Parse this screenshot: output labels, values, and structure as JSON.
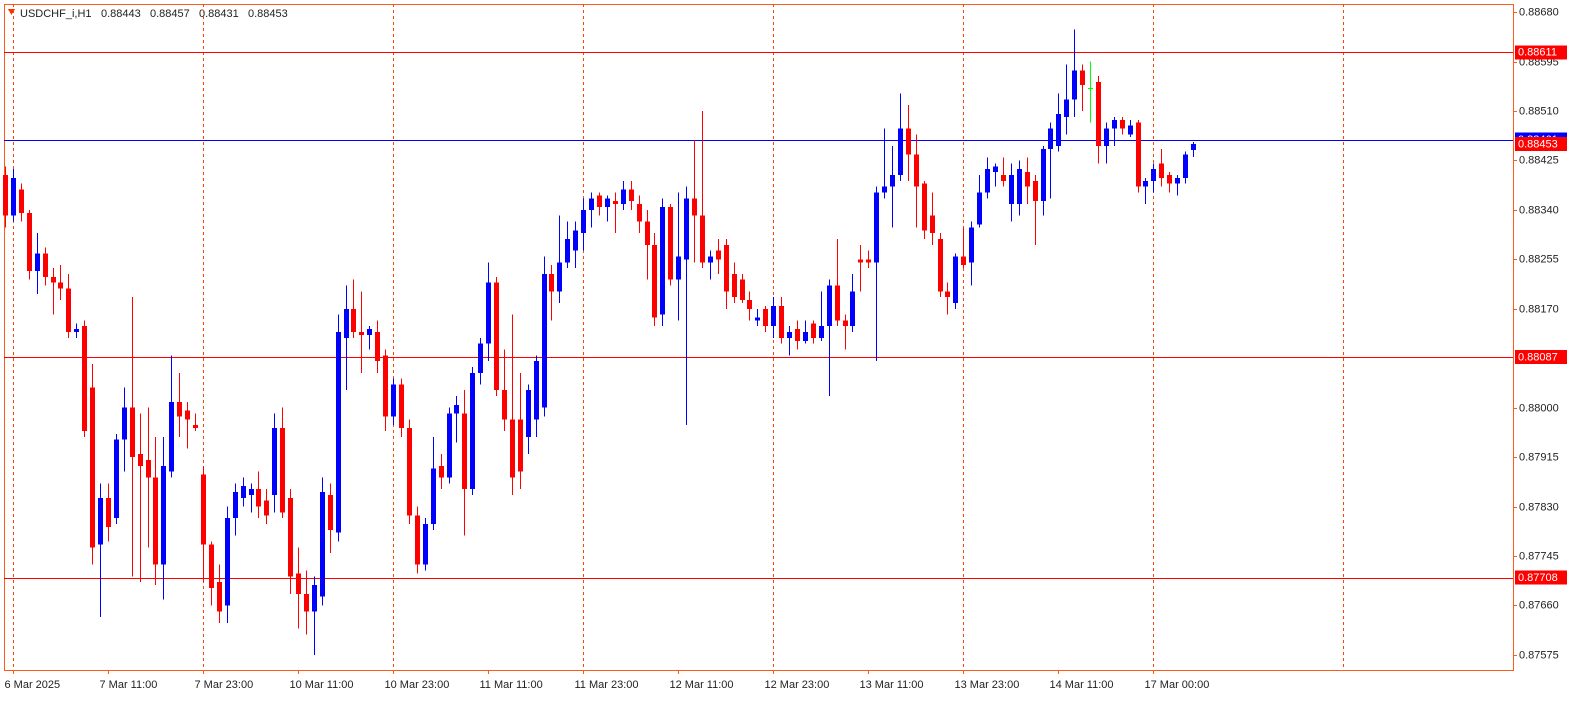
{
  "chart_data": {
    "type": "candlestick",
    "title": "USDCHF_i,H1",
    "categories": [
      null,
      "6 Mar 2025",
      null,
      null,
      null,
      null,
      null,
      null,
      null,
      null,
      null,
      null,
      null,
      "7 Mar 11:00",
      null,
      null,
      null,
      null,
      null,
      null,
      null,
      null,
      null,
      null,
      null,
      "7 Mar 23:00",
      null,
      null,
      null,
      null,
      null,
      null,
      null,
      null,
      null,
      null,
      null,
      "10 Mar 11:00",
      null,
      null,
      null,
      null,
      null,
      null,
      null,
      null,
      null,
      null,
      null,
      "10 Mar 23:00",
      null,
      null,
      null,
      null,
      null,
      null,
      null,
      null,
      null,
      null,
      null,
      "11 Mar 11:00",
      null,
      null,
      null,
      null,
      null,
      null,
      null,
      null,
      null,
      null,
      null,
      "11 Mar 23:00",
      null,
      null,
      null,
      null,
      null,
      null,
      null,
      null,
      null,
      null,
      null,
      "12 Mar 11:00",
      null,
      null,
      null,
      null,
      null,
      null,
      null,
      null,
      null,
      null,
      null,
      "12 Mar 23:00",
      null,
      null,
      null,
      null,
      null,
      null,
      null,
      null,
      null,
      null,
      null,
      "13 Mar 11:00",
      null,
      null,
      null,
      null,
      null,
      null,
      null,
      null,
      null,
      null,
      null,
      "13 Mar 23:00",
      null,
      null,
      null,
      null,
      null,
      null,
      null,
      null,
      null,
      null,
      null,
      "14 Mar 11:00",
      null,
      null,
      null,
      null,
      null,
      null,
      null,
      null,
      null,
      null,
      null,
      "17 Mar 00:00",
      null,
      null,
      null,
      null,
      null
    ],
    "open": [
      0.884,
      0.8833,
      0.88375,
      0.88335,
      0.88235,
      0.88265,
      0.88225,
      0.88215,
      0.88205,
      0.8813,
      0.8814,
      0.88035,
      0.87765,
      0.87845,
      0.8781,
      0.87945,
      0.88,
      0.8792,
      0.8791,
      0.8788,
      0.8773,
      0.8789,
      0.8801,
      0.87995,
      0.8797,
      0.87885,
      0.87765,
      0.877,
      0.8766,
      0.8781,
      0.87845,
      0.8785,
      0.8786,
      0.8784,
      0.8785,
      0.87965,
      0.87845,
      0.87715,
      0.8768,
      0.8765,
      0.87675,
      0.8785,
      0.87785,
      0.8812,
      0.8817,
      0.8813,
      0.88125,
      0.8813,
      0.8809,
      0.87985,
      0.8804,
      0.87965,
      0.87815,
      0.8773,
      0.878,
      0.879,
      0.8788,
      0.8799,
      0.8799,
      0.8786,
      0.8806,
      0.8811,
      0.88215,
      0.8803,
      0.8798,
      0.8798,
      0.8795,
      0.8798,
      0.88,
      0.8823,
      0.882,
      0.8825,
      0.8827,
      0.883,
      0.8834,
      0.88365,
      0.88345,
      0.88355,
      0.8835,
      0.88375,
      0.8835,
      0.8832,
      0.8828,
      0.8816,
      0.88345,
      0.8822,
      0.88255,
      0.8836,
      0.8833,
      0.8825,
      0.8827,
      0.8828,
      0.8823,
      0.8822,
      0.88185,
      0.8815,
      0.8817,
      0.8814,
      0.88175,
      0.8812,
      0.88135,
      0.88115,
      0.88145,
      0.8812,
      0.8814,
      0.8821,
      0.8815,
      0.8814,
      0.88255,
      0.88255,
      0.8825,
      0.8837,
      0.8838,
      0.884,
      0.8848,
      0.88435,
      0.88385,
      0.8833,
      0.8829,
      0.882,
      0.8818,
      0.8826,
      0.8825,
      0.88315,
      0.8837,
      0.88405,
      0.884,
      0.8835,
      0.8835,
      0.88405,
      0.8839,
      0.88355,
      0.88445,
      0.8845,
      0.885,
      0.8853,
      0.8858,
      0.8855,
      0.8856,
      0.8845,
      0.8848,
      0.88495,
      0.8847,
      0.8849,
      0.8838,
      0.8839,
      0.8842,
      0.884,
      0.88385,
      0.88395,
      0.88443
    ],
    "high": [
      0.88415,
      0.8841,
      0.88385,
      0.8834,
      0.883,
      0.88275,
      0.8824,
      0.88245,
      0.8823,
      0.88145,
      0.8815,
      0.88075,
      0.8787,
      0.8787,
      0.87955,
      0.88035,
      0.8819,
      0.8799,
      0.88,
      0.8795,
      0.8795,
      0.8809,
      0.8806,
      0.8801,
      0.8799,
      0.879,
      0.8777,
      0.8773,
      0.8783,
      0.8787,
      0.8788,
      0.8787,
      0.8789,
      0.8786,
      0.8799,
      0.88,
      0.8786,
      0.8776,
      0.8772,
      0.8771,
      0.8788,
      0.8787,
      0.8816,
      0.8821,
      0.8822,
      0.882,
      0.8814,
      0.8815,
      0.881,
      0.8805,
      0.8805,
      0.8798,
      0.8783,
      0.8781,
      0.8795,
      0.8792,
      0.88,
      0.8802,
      0.8803,
      0.8807,
      0.8812,
      0.8825,
      0.88225,
      0.881,
      0.8816,
      0.8806,
      0.8804,
      0.8809,
      0.8826,
      0.88245,
      0.8833,
      0.8832,
      0.8832,
      0.8836,
      0.8837,
      0.8837,
      0.88365,
      0.8837,
      0.8839,
      0.8839,
      0.88365,
      0.8834,
      0.883,
      0.8836,
      0.8835,
      0.8837,
      0.8838,
      0.8846,
      0.8851,
      0.8827,
      0.8829,
      0.8829,
      0.8825,
      0.8823,
      0.882,
      0.8817,
      0.88175,
      0.8819,
      0.8819,
      0.8814,
      0.8815,
      0.8815,
      0.8815,
      0.882,
      0.8822,
      0.8829,
      0.8816,
      0.8823,
      0.8828,
      0.8827,
      0.8838,
      0.8848,
      0.8845,
      0.8854,
      0.8852,
      0.8847,
      0.8839,
      0.8837,
      0.883,
      0.88215,
      0.88265,
      0.8831,
      0.8832,
      0.884,
      0.8843,
      0.8842,
      0.8843,
      0.8842,
      0.88425,
      0.8843,
      0.884,
      0.8845,
      0.8849,
      0.8854,
      0.8859,
      0.8865,
      0.8859,
      0.88595,
      0.8857,
      0.8849,
      0.885,
      0.885,
      0.88495,
      0.88495,
      0.88395,
      0.8842,
      0.88445,
      0.88405,
      0.884,
      0.8844,
      0.88457
    ],
    "low": [
      0.8831,
      0.8832,
      0.8832,
      0.8822,
      0.88195,
      0.8821,
      0.8816,
      0.88185,
      0.8812,
      0.8812,
      0.8795,
      0.8773,
      0.8764,
      0.8777,
      0.878,
      0.8789,
      0.8771,
      0.877,
      0.8776,
      0.87695,
      0.8767,
      0.8788,
      0.8795,
      0.8793,
      0.8796,
      0.877,
      0.8766,
      0.8763,
      0.8763,
      0.8778,
      0.8783,
      0.8782,
      0.8781,
      0.878,
      0.8782,
      0.8781,
      0.8768,
      0.8762,
      0.8761,
      0.87575,
      0.8766,
      0.8775,
      0.8777,
      0.8803,
      0.8812,
      0.8806,
      0.881,
      0.8806,
      0.8796,
      0.8797,
      0.8795,
      0.878,
      0.87715,
      0.8772,
      0.8779,
      0.8786,
      0.8787,
      0.8794,
      0.8778,
      0.8785,
      0.8804,
      0.8808,
      0.8802,
      0.8796,
      0.8785,
      0.8786,
      0.8792,
      0.8795,
      0.87985,
      0.8815,
      0.8818,
      0.8824,
      0.8824,
      0.8827,
      0.8831,
      0.8833,
      0.8832,
      0.883,
      0.8834,
      0.8834,
      0.883,
      0.8822,
      0.8814,
      0.8814,
      0.8821,
      0.8815,
      0.8797,
      0.8825,
      0.8824,
      0.8822,
      0.8823,
      0.8817,
      0.8818,
      0.8818,
      0.8815,
      0.8814,
      0.8813,
      0.8812,
      0.8811,
      0.8809,
      0.881,
      0.8811,
      0.8811,
      0.88115,
      0.8802,
      0.8814,
      0.881,
      0.8813,
      0.882,
      0.8824,
      0.8808,
      0.8836,
      0.8831,
      0.8839,
      0.8839,
      0.8831,
      0.8829,
      0.8828,
      0.8819,
      0.8816,
      0.8817,
      0.8824,
      0.8821,
      0.8831,
      0.8836,
      0.8838,
      0.8838,
      0.8832,
      0.8833,
      0.8835,
      0.8828,
      0.8833,
      0.8836,
      0.8844,
      0.8847,
      0.885,
      0.8851,
      0.8849,
      0.8842,
      0.8842,
      0.8845,
      0.8847,
      0.88465,
      0.8837,
      0.8835,
      0.8837,
      0.8838,
      0.8837,
      0.88365,
      0.88385,
      0.88431
    ],
    "close": [
      0.8833,
      0.88395,
      0.88335,
      0.88235,
      0.88265,
      0.88225,
      0.88215,
      0.88205,
      0.8813,
      0.88135,
      0.8796,
      0.8776,
      0.87845,
      0.87795,
      0.87945,
      0.88,
      0.87915,
      0.879,
      0.8788,
      0.8773,
      0.879,
      0.8801,
      0.87985,
      0.8798,
      0.87965,
      0.87765,
      0.8769,
      0.8765,
      0.8781,
      0.87855,
      0.87865,
      0.8786,
      0.8783,
      0.87815,
      0.87965,
      0.8782,
      0.8771,
      0.8768,
      0.8765,
      0.87695,
      0.87855,
      0.8779,
      0.8813,
      0.8817,
      0.8813,
      0.88125,
      0.88135,
      0.8808,
      0.87985,
      0.8804,
      0.87965,
      0.87815,
      0.8773,
      0.878,
      0.87895,
      0.8788,
      0.8799,
      0.88005,
      0.8786,
      0.8806,
      0.8811,
      0.88215,
      0.8803,
      0.8798,
      0.8788,
      0.8789,
      0.8803,
      0.8808,
      0.8823,
      0.882,
      0.8825,
      0.8829,
      0.88305,
      0.8834,
      0.8836,
      0.88345,
      0.8836,
      0.8835,
      0.88375,
      0.88355,
      0.8832,
      0.8828,
      0.88155,
      0.88345,
      0.8822,
      0.8826,
      0.8836,
      0.8833,
      0.8825,
      0.8826,
      0.88255,
      0.882,
      0.8819,
      0.88185,
      0.8817,
      0.88155,
      0.8814,
      0.88175,
      0.8812,
      0.8813,
      0.88115,
      0.8813,
      0.8812,
      0.8814,
      0.8821,
      0.8815,
      0.8814,
      0.882,
      0.8825,
      0.8825,
      0.8837,
      0.8838,
      0.884,
      0.8848,
      0.88435,
      0.8838,
      0.88305,
      0.883,
      0.882,
      0.8819,
      0.8826,
      0.88245,
      0.8831,
      0.8837,
      0.8841,
      0.88415,
      0.8839,
      0.884,
      0.8841,
      0.8838,
      0.88355,
      0.88445,
      0.8848,
      0.88505,
      0.8853,
      0.8858,
      0.88555,
      0.8855,
      0.8845,
      0.8848,
      0.88495,
      0.8848,
      0.88485,
      0.8838,
      0.8839,
      0.8841,
      0.88395,
      0.88385,
      0.88395,
      0.88435,
      0.88453
    ],
    "up_color": "#0000ff",
    "down_color": "#ff0000",
    "doji_color": "#00ff00",
    "ylim": [
      0.87549,
      0.88694
    ],
    "yticks": [
      {
        "value": 0.8868,
        "label": "0.88680"
      },
      0.88595,
      {
        "value": 0.8851,
        "label": "0.88510"
      },
      0.88425,
      {
        "value": 0.8834,
        "label": "0.88340"
      },
      0.88255,
      {
        "value": 0.8817,
        "label": "0.88170"
      },
      {
        "value": 0.88,
        "label": "0.88000"
      },
      0.87915,
      {
        "value": 0.8783,
        "label": "0.87830"
      },
      0.87745,
      {
        "value": 0.8766,
        "label": "0.87660"
      },
      0.87575
    ],
    "levels": [
      {
        "value": 0.88611,
        "color": "#ff0000"
      },
      {
        "value": 0.88461,
        "color": "#0000ff"
      },
      {
        "value": 0.88087,
        "color": "#ff0000"
      },
      {
        "value": 0.87708,
        "color": "#ff0000"
      }
    ],
    "grid": true
  }
}
